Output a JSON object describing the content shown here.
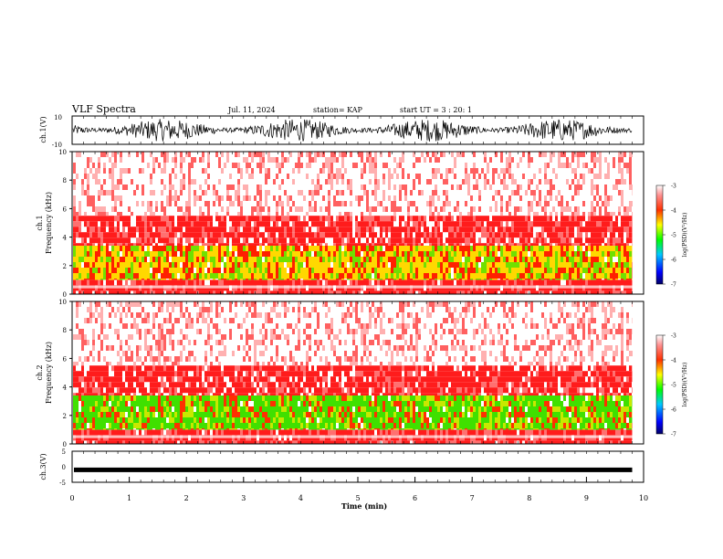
{
  "header": {
    "title": "VLF Spectra",
    "date": "Jul. 11, 2024",
    "station": "station= KAP",
    "start_ut": "start UT =  3 : 20: 1"
  },
  "colorbar": {
    "label": "log(PSD)(V²/Hz)",
    "ticks": [
      "-3",
      "-4",
      "-5",
      "-6",
      "-7"
    ]
  },
  "chart_data": [
    {
      "type": "line",
      "name": "ch.1 waveform",
      "ylabel": "ch.1(V)",
      "ylim": [
        -10,
        10
      ],
      "yticks": [
        "10",
        "-10"
      ],
      "xlim": [
        0,
        10
      ],
      "description_values": "dense noise-like waveform spanning roughly -8 to +8 V over 0–9.8 min"
    },
    {
      "type": "heatmap",
      "name": "ch.1 spectrogram",
      "ylabel": "ch.1\nFrequency (kHz)",
      "ylim": [
        0,
        10
      ],
      "yticks": [
        "10",
        "8",
        "6",
        "4",
        "2",
        "0"
      ],
      "xlim": [
        0,
        10
      ],
      "data_end_min": 9.8,
      "clim": [
        -7,
        -3
      ]
    },
    {
      "type": "heatmap",
      "name": "ch.2 spectrogram",
      "ylabel": "ch.2\nFrequency (kHz)",
      "ylim": [
        0,
        10
      ],
      "yticks": [
        "10",
        "8",
        "6",
        "4",
        "2",
        "0"
      ],
      "xlim": [
        0,
        10
      ],
      "data_end_min": 9.8,
      "clim": [
        -7,
        -3
      ]
    },
    {
      "type": "line",
      "name": "ch.3 waveform",
      "ylabel": "ch.3(V)",
      "ylim": [
        -5,
        5
      ],
      "yticks": [
        "5",
        "0",
        "-5"
      ],
      "xlim": [
        0,
        10
      ],
      "xlabel": "Time (min)",
      "xticks": [
        "0",
        "1",
        "2",
        "3",
        "4",
        "5",
        "6",
        "7",
        "8",
        "9",
        "10"
      ],
      "level": -1
    }
  ]
}
